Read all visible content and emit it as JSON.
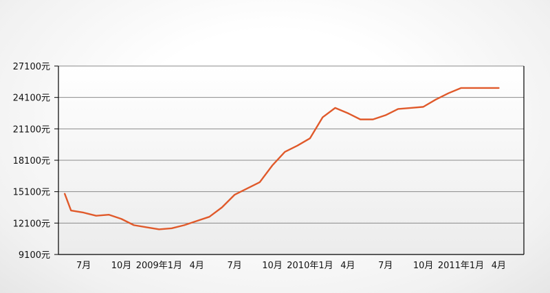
{
  "chart_data": {
    "type": "line",
    "title": "",
    "xlabel": "",
    "ylabel": "",
    "ylim": [
      9100,
      27100
    ],
    "yticks": [
      9100,
      12100,
      15100,
      18100,
      21100,
      24100,
      27100
    ],
    "ytick_labels": [
      "9100元",
      "12100元",
      "15100元",
      "18100元",
      "21100元",
      "24100元",
      "27100元"
    ],
    "xlim": [
      -1,
      36
    ],
    "xticks": [
      {
        "i": 1,
        "label": "7月"
      },
      {
        "i": 4,
        "label": "10月"
      },
      {
        "i": 7,
        "label": "2009年1月"
      },
      {
        "i": 10,
        "label": "4月"
      },
      {
        "i": 13,
        "label": "7月"
      },
      {
        "i": 16,
        "label": "10月"
      },
      {
        "i": 19,
        "label": "2010年1月"
      },
      {
        "i": 22,
        "label": "4月"
      },
      {
        "i": 25,
        "label": "7月"
      },
      {
        "i": 28,
        "label": "10月"
      },
      {
        "i": 31,
        "label": "2011年1月"
      },
      {
        "i": 34,
        "label": "4月"
      }
    ],
    "grid": true,
    "series": [
      {
        "color": "#e0592a",
        "x": [
          -0.5,
          0,
          1,
          2,
          3,
          4,
          5,
          6,
          7,
          8,
          9,
          10,
          11,
          12,
          13,
          14,
          15,
          16,
          17,
          18,
          19,
          20,
          21,
          22,
          23,
          24,
          25,
          26,
          27,
          28,
          29,
          30,
          31,
          32,
          33,
          34
        ],
        "values": [
          14900,
          13300,
          13100,
          12800,
          12900,
          12500,
          11900,
          11700,
          11500,
          11600,
          11900,
          12300,
          12700,
          13600,
          14800,
          15400,
          16000,
          17600,
          18900,
          19500,
          20200,
          22200,
          23100,
          22600,
          22000,
          22000,
          22400,
          23000,
          23100,
          23200,
          23900,
          24500,
          25000,
          25000,
          25000,
          25000
        ]
      }
    ]
  }
}
